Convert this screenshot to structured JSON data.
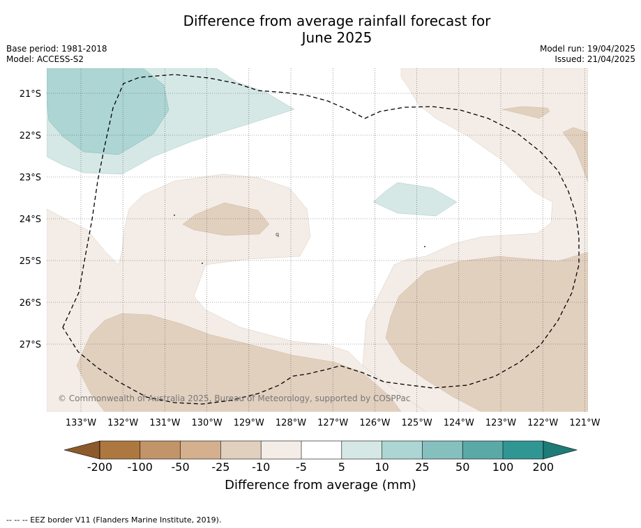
{
  "title": {
    "line1": "Difference from average rainfall forecast for",
    "line2": "June 2025"
  },
  "meta_left": {
    "base_period": "Base period: 1981-2018",
    "model": "Model: ACCESS-S2"
  },
  "meta_right": {
    "model_run": "Model run: 19/04/2025",
    "issued": "Issued: 21/04/2025"
  },
  "map": {
    "lat_labels": [
      "21°S",
      "22°S",
      "23°S",
      "24°S",
      "25°S",
      "26°S",
      "27°S"
    ],
    "lon_labels": [
      "133°W",
      "132°W",
      "131°W",
      "130°W",
      "129°W",
      "128°W",
      "127°W",
      "126°W",
      "125°W",
      "124°W",
      "123°W",
      "122°W",
      "121°W"
    ],
    "copyright": "© Commonwealth of Australia 2025, Bureau of Meteorology, supported by COSPPac"
  },
  "legend": {
    "title": "Difference from average (mm)",
    "tick_labels": [
      "-200",
      "-100",
      "-50",
      "-25",
      "-10",
      "-5",
      "5",
      "10",
      "25",
      "50",
      "100",
      "200"
    ],
    "colors": [
      "#8c5a2b",
      "#ad7840",
      "#c29469",
      "#d4b08e",
      "#e2d0bf",
      "#f4ede7",
      "#ffffff",
      "#d5e8e6",
      "#acd5d3",
      "#85c0bf",
      "#5aa9a7",
      "#309693",
      "#1e7b78"
    ]
  },
  "footnote": "-- -- -- EEZ border V11 (Flanders Marine Institute, 2019)."
}
